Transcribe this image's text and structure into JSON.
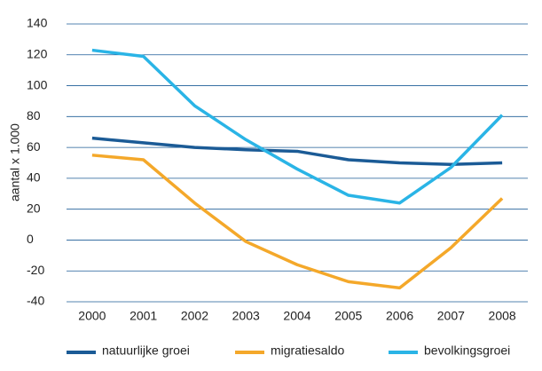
{
  "chart_data": {
    "type": "line",
    "y_label": "aantal x 1.000",
    "categories": [
      "2000",
      "2001",
      "2002",
      "2003",
      "2004",
      "2005",
      "2006",
      "2007",
      "2008"
    ],
    "series": [
      {
        "name": "natuurlijke groei",
        "color": "#1b5b96",
        "values": [
          66,
          63,
          60,
          58.5,
          57.5,
          52,
          50,
          49,
          50
        ]
      },
      {
        "name": "migratiesaldo",
        "color": "#f4a82a",
        "values": [
          55,
          52,
          24,
          -1,
          -16,
          -27,
          -31,
          -5,
          27
        ]
      },
      {
        "name": "bevolkingsgroei",
        "color": "#2ab4e6",
        "values": [
          123,
          119,
          87,
          65,
          46,
          29,
          24,
          47,
          81
        ]
      }
    ],
    "ylim": [
      -40,
      140
    ],
    "yticks": [
      -40,
      -20,
      0,
      20,
      40,
      60,
      80,
      100,
      120,
      140
    ],
    "grid": true
  }
}
